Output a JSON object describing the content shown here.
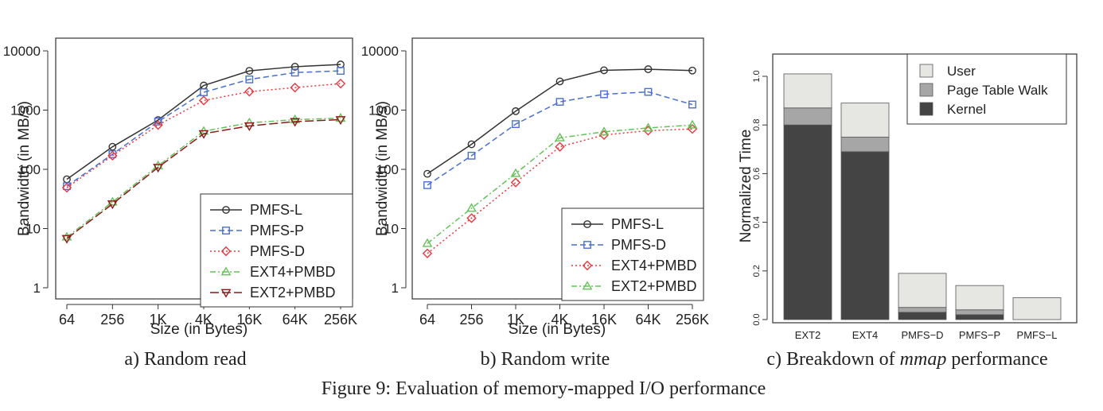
{
  "figure": {
    "caption": "Figure 9: Evaluation of memory-mapped I/O performance"
  },
  "chart_data": [
    {
      "type": "line",
      "caption": "a) Random read",
      "xlabel": "Size (in Bytes)",
      "ylabel": "Bandwidth (in MB/s)",
      "yscale": "log",
      "ylim": [
        1,
        10000
      ],
      "ytick_labels": [
        "1",
        "10",
        "100",
        "1000",
        "10000"
      ],
      "categories": [
        "64",
        "256",
        "1K",
        "4K",
        "16K",
        "64K",
        "256K"
      ],
      "legend_position": "bottom-right",
      "series": [
        {
          "name": "PMFS-L",
          "color": "#333333",
          "dash": "solid",
          "marker": "circle",
          "values": [
            68,
            240,
            680,
            2600,
            4600,
            5400,
            5900
          ]
        },
        {
          "name": "PMFS-P",
          "color": "#4a6fd1",
          "dash": "dashed",
          "marker": "square",
          "values": [
            52,
            180,
            640,
            2000,
            3300,
            4300,
            4600
          ]
        },
        {
          "name": "PMFS-D",
          "color": "#e8393f",
          "dash": "dotted",
          "marker": "diamond",
          "values": [
            49,
            170,
            560,
            1450,
            2050,
            2400,
            2800
          ]
        },
        {
          "name": "EXT4+PMBD",
          "color": "#66c15a",
          "dash": "dashdot",
          "marker": "triangle-up",
          "values": [
            7.2,
            28,
            115,
            440,
            610,
            690,
            730
          ]
        },
        {
          "name": "EXT2+PMBD",
          "color": "#8b1a1a",
          "dash": "longdash",
          "marker": "triangle-down",
          "values": [
            6.8,
            26,
            108,
            400,
            540,
            640,
            690
          ]
        }
      ]
    },
    {
      "type": "line",
      "caption": "b) Random write",
      "xlabel": "Size (in Bytes)",
      "ylabel": "Bandwidth (in MB/s)",
      "yscale": "log",
      "ylim": [
        1,
        10000
      ],
      "ytick_labels": [
        "1",
        "10",
        "100",
        "1000",
        "10000"
      ],
      "categories": [
        "64",
        "256",
        "1K",
        "4K",
        "16K",
        "64K",
        "256K"
      ],
      "legend_position": "bottom-right",
      "series": [
        {
          "name": "PMFS-L",
          "color": "#333333",
          "dash": "solid",
          "marker": "circle",
          "values": [
            84,
            265,
            960,
            3050,
            4700,
            4900,
            4650
          ]
        },
        {
          "name": "PMFS-D",
          "color": "#4a6fd1",
          "dash": "dashed",
          "marker": "square",
          "values": [
            54,
            170,
            580,
            1380,
            1850,
            2030,
            1240
          ]
        },
        {
          "name": "EXT4+PMBD",
          "color": "#e8393f",
          "dash": "dotted",
          "marker": "diamond",
          "values": [
            3.8,
            15,
            60,
            240,
            380,
            450,
            480
          ]
        },
        {
          "name": "EXT2+PMBD",
          "color": "#66c15a",
          "dash": "dashdot",
          "marker": "triangle-up",
          "values": [
            5.6,
            22,
            85,
            340,
            430,
            500,
            560
          ]
        }
      ]
    },
    {
      "type": "bar",
      "stacked": true,
      "caption_prefix": "c) Breakdown of ",
      "caption_emph": "mmap",
      "caption_suffix": " performance",
      "xlabel": "",
      "ylabel": "Normalized Time",
      "ylim": [
        0,
        1.0
      ],
      "ytick_labels": [
        "0.0",
        "0.2",
        "0.4",
        "0.6",
        "0.8",
        "1.0"
      ],
      "categories": [
        "EXT2",
        "EXT4",
        "PMFS−D",
        "PMFS−P",
        "PMFS−L"
      ],
      "legend_position": "top-right",
      "series": [
        {
          "name": "Kernel",
          "color": "#444444",
          "values": [
            0.8,
            0.69,
            0.03,
            0.02,
            0.0
          ]
        },
        {
          "name": "Page Table Walk",
          "color": "#a6a6a6",
          "values": [
            0.07,
            0.06,
            0.02,
            0.02,
            0.0
          ]
        },
        {
          "name": "User",
          "color": "#e6e6e3",
          "values": [
            0.14,
            0.14,
            0.14,
            0.1,
            0.09
          ]
        }
      ],
      "legend_order": [
        "User",
        "Page Table Walk",
        "Kernel"
      ]
    }
  ]
}
